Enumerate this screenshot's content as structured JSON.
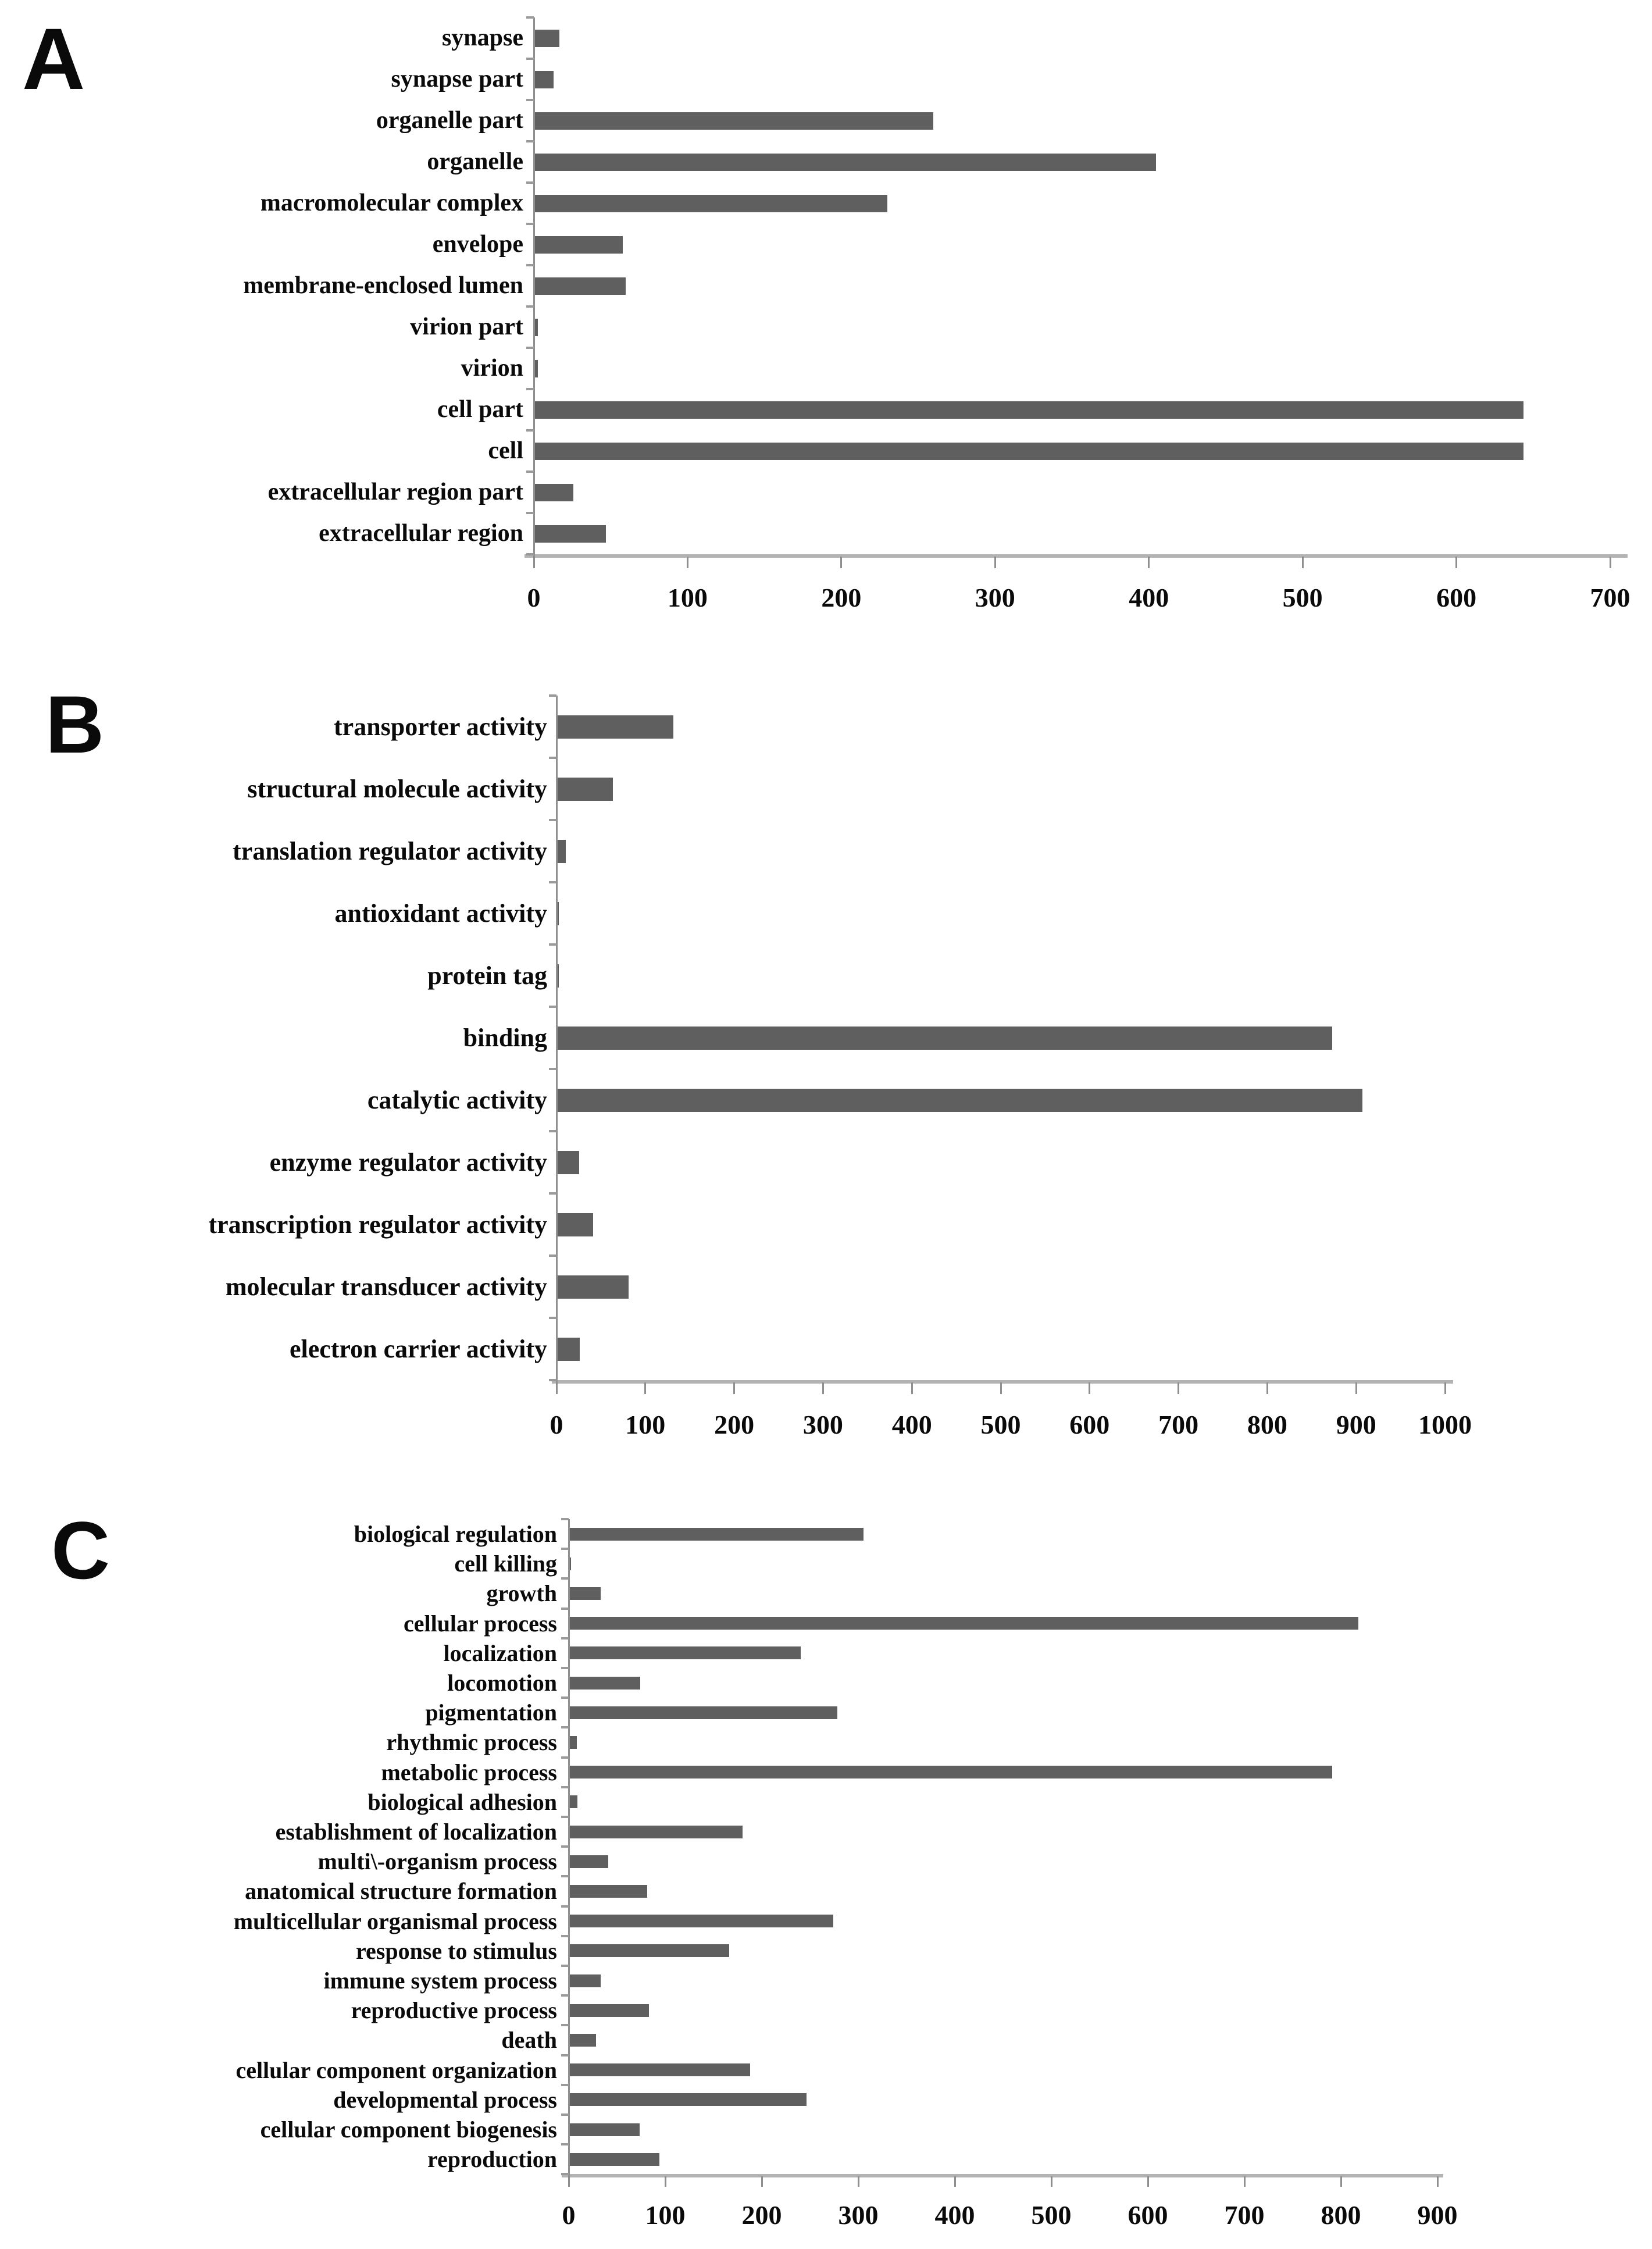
{
  "figure": {
    "description": "Gene Ontology classification figure with three horizontal bar chart panels",
    "background": "#ffffff"
  },
  "colors": {
    "bar": "#5f5f5f",
    "axis_line": "#b3b3b3",
    "axis_tick": "#8f8f8f",
    "text": "#000000"
  },
  "chart_data": [
    {
      "type": "bar",
      "orientation": "horizontal",
      "panel_label": "A",
      "title": "",
      "xlabel": "",
      "ylabel": "",
      "xlim": [
        0,
        700
      ],
      "xticks": [
        0,
        100,
        200,
        300,
        400,
        500,
        600,
        700
      ],
      "grid": false,
      "legend": null,
      "bar_color": "#5f5f5f",
      "categories": [
        "synapse",
        "synapse part",
        "organelle part",
        "organelle",
        "macromolecular complex",
        "envelope",
        "membrane-enclosed lumen",
        "virion part",
        "virion",
        "cell part",
        "cell",
        "extracellular region part",
        "extracellular region"
      ],
      "values": [
        16,
        12,
        259,
        404,
        229,
        57,
        59,
        2,
        2,
        643,
        643,
        25,
        46
      ]
    },
    {
      "type": "bar",
      "orientation": "horizontal",
      "panel_label": "B",
      "title": "",
      "xlabel": "",
      "ylabel": "",
      "xlim": [
        0,
        1000
      ],
      "xticks": [
        0,
        100,
        200,
        300,
        400,
        500,
        600,
        700,
        800,
        900,
        1000
      ],
      "grid": false,
      "legend": null,
      "bar_color": "#5f5f5f",
      "categories": [
        "transporter activity",
        "structural molecule activity",
        "translation regulator activity",
        "antioxidant activity",
        "protein tag",
        "binding",
        "catalytic activity",
        "enzyme regulator activity",
        "transcription regulator activity",
        "molecular transducer activity",
        "electron carrier activity"
      ],
      "values": [
        130,
        62,
        9,
        1,
        1,
        872,
        906,
        24,
        40,
        80,
        25
      ]
    },
    {
      "type": "bar",
      "orientation": "horizontal",
      "panel_label": "C",
      "title": "",
      "xlabel": "",
      "ylabel": "",
      "xlim": [
        0,
        900
      ],
      "xticks": [
        0,
        100,
        200,
        300,
        400,
        500,
        600,
        700,
        800,
        900
      ],
      "grid": false,
      "legend": null,
      "bar_color": "#5f5f5f",
      "categories": [
        "biological regulation",
        "cell killing",
        "growth",
        "cellular process",
        "localization",
        "locomotion",
        "pigmentation",
        "rhythmic process",
        "metabolic process",
        "biological adhesion",
        "establishment of localization",
        "multi\\-organism process",
        "anatomical structure formation",
        "multicellular organismal process",
        "response to stimulus",
        "immune system process",
        "reproductive process",
        "death",
        "cellular component organization",
        "developmental process",
        "cellular component biogenesis",
        "reproduction"
      ],
      "values": [
        304,
        1,
        32,
        817,
        239,
        73,
        277,
        7,
        790,
        8,
        179,
        40,
        80,
        273,
        165,
        32,
        82,
        27,
        187,
        245,
        72,
        93
      ]
    }
  ]
}
